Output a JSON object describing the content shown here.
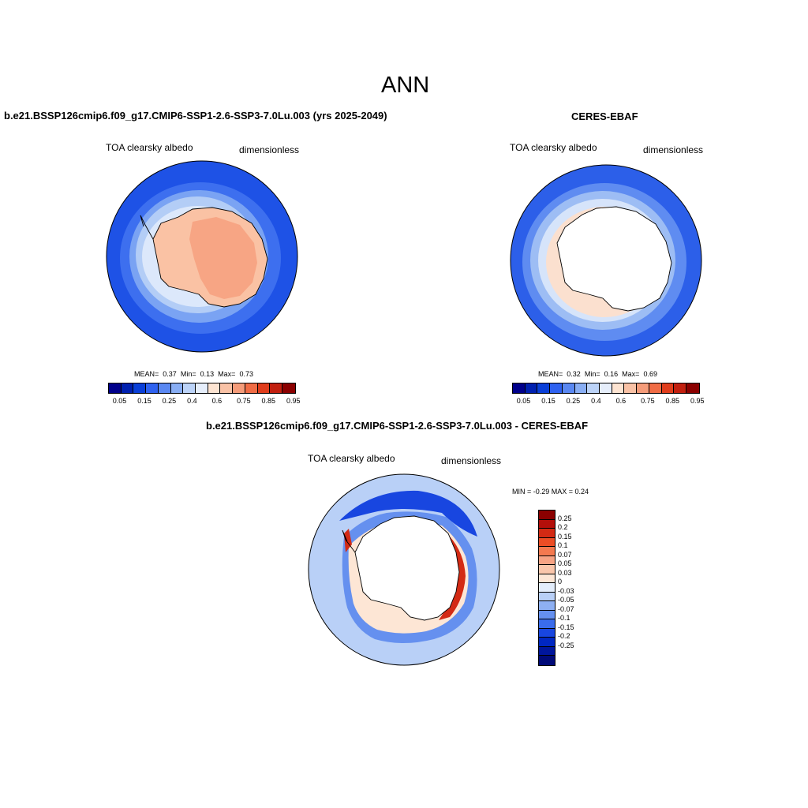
{
  "page_title": "ANN",
  "panels": {
    "model": {
      "title": "b.e21.BSSP126cmip6.f09_g17.CMIP6-SSP1-2.6-SSP3-7.0Lu.003 (yrs 2025-2049)",
      "variable": "TOA clearsky albedo",
      "units": "dimensionless",
      "stats": {
        "mean_label": "MEAN=",
        "mean": "0.37",
        "min_label": "Min=",
        "min": "0.13",
        "max_label": "Max=",
        "max": "0.73"
      }
    },
    "obs": {
      "title": "CERES-EBAF",
      "variable": "TOA clearsky albedo",
      "units": "dimensionless",
      "stats": {
        "mean_label": "MEAN=",
        "mean": "0.32",
        "min_label": "Min=",
        "min": "0.16",
        "max_label": "Max=",
        "max": "0.69"
      }
    },
    "diff": {
      "title": "b.e21.BSSP126cmip6.f09_g17.CMIP6-SSP1-2.6-SSP3-7.0Lu.003 - CERES-EBAF",
      "variable": "TOA clearsky albedo",
      "units": "dimensionless",
      "minmax": "MIN =  -0.29 MAX =   0.24"
    }
  },
  "colorbar_abs": {
    "colors": [
      "#00008b",
      "#0020b0",
      "#0a3fd8",
      "#2f62f0",
      "#5a88f2",
      "#89aef4",
      "#bcd3f8",
      "#e6eefb",
      "#fde4d2",
      "#f9c2a6",
      "#f59c7a",
      "#f06c45",
      "#e03d1c",
      "#c21f0f",
      "#8b0000"
    ],
    "labels": [
      "0.05",
      "0.15",
      "0.25",
      "0.4",
      "0.6",
      "0.75",
      "0.85",
      "0.95"
    ]
  },
  "colorbar_diff": {
    "colors": [
      "#8b0000",
      "#b30f0a",
      "#d32a14",
      "#ec4d25",
      "#f4794f",
      "#f7a384",
      "#fac6ab",
      "#fde6d5",
      "#e3edfb",
      "#b9d0f7",
      "#8eb0f3",
      "#6590ef",
      "#3a6cec",
      "#1846e0",
      "#0027c2",
      "#00169c",
      "#000a78"
    ],
    "labels": [
      "0.25",
      "0.2",
      "0.15",
      "0.1",
      "0.07",
      "0.05",
      "0.03",
      "0",
      "-0.03",
      "-0.05",
      "-0.07",
      "-0.1",
      "-0.15",
      "-0.2",
      "-0.25"
    ]
  }
}
